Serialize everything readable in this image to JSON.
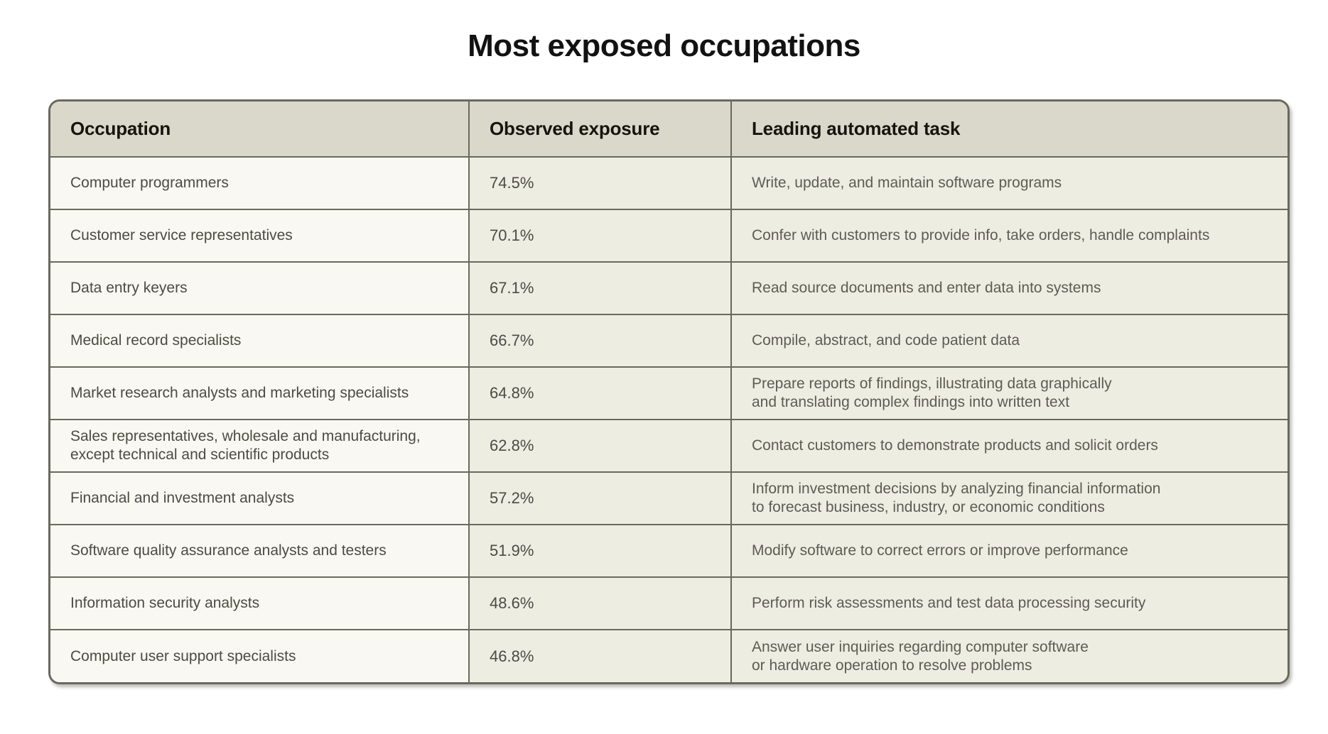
{
  "page": {
    "title": "Most exposed occupations",
    "background_color": "#ffffff"
  },
  "table": {
    "columns": [
      "Occupation",
      "Observed exposure",
      "Leading automated task"
    ],
    "rows": [
      {
        "occupation": "Computer programmers",
        "exposure": "74.5%",
        "task": "Write, update, and maintain software programs"
      },
      {
        "occupation": "Customer service representatives",
        "exposure": "70.1%",
        "task": "Confer with customers to provide info, take orders, handle complaints"
      },
      {
        "occupation": "Data entry keyers",
        "exposure": "67.1%",
        "task": "Read source documents and enter data into systems"
      },
      {
        "occupation": "Medical record specialists",
        "exposure": "66.7%",
        "task": "Compile, abstract, and code patient data"
      },
      {
        "occupation": "Market research analysts and marketing specialists",
        "exposure": "64.8%",
        "task": "Prepare reports of findings, illustrating data graphically\nand translating complex findings into written text"
      },
      {
        "occupation": "Sales representatives, wholesale and manufacturing,\nexcept technical and scientific products",
        "exposure": "62.8%",
        "task": "Contact customers to demonstrate products and solicit orders"
      },
      {
        "occupation": "Financial and investment analysts",
        "exposure": "57.2%",
        "task": "Inform investment decisions by analyzing financial information\nto forecast business, industry, or economic conditions"
      },
      {
        "occupation": "Software quality assurance analysts and testers",
        "exposure": "51.9%",
        "task": "Modify software to correct errors or improve performance"
      },
      {
        "occupation": "Information security analysts",
        "exposure": "48.6%",
        "task": "Perform risk assessments and test data processing security"
      },
      {
        "occupation": "Computer user support specialists",
        "exposure": "46.8%",
        "task": "Answer user inquiries regarding computer software\nor hardware operation to resolve problems"
      }
    ],
    "colors": {
      "header_bg": "#d9d8ca",
      "occupation_col_bg": "#f9f8f2",
      "data_col_bg": "#eeede2",
      "border": "#6a695f",
      "title_text": "#121212",
      "header_text": "#15140f",
      "cell_text_dark": "#4c4b44",
      "cell_text_muted": "#5d5c53"
    }
  },
  "chart_data": {
    "type": "table",
    "title": "Most exposed occupations",
    "columns": [
      "Occupation",
      "Observed exposure",
      "Leading automated task"
    ],
    "rows": [
      [
        "Computer programmers",
        74.5,
        "Write, update, and maintain software programs"
      ],
      [
        "Customer service representatives",
        70.1,
        "Confer with customers to provide info, take orders, handle complaints"
      ],
      [
        "Data entry keyers",
        67.1,
        "Read source documents and enter data into systems"
      ],
      [
        "Medical record specialists",
        66.7,
        "Compile, abstract, and code patient data"
      ],
      [
        "Market research analysts and marketing specialists",
        64.8,
        "Prepare reports of findings, illustrating data graphically and translating complex findings into written text"
      ],
      [
        "Sales representatives, wholesale and manufacturing, except technical and scientific products",
        62.8,
        "Contact customers to demonstrate products and solicit orders"
      ],
      [
        "Financial and investment analysts",
        57.2,
        "Inform investment decisions by analyzing financial information to forecast business, industry, or economic conditions"
      ],
      [
        "Software quality assurance analysts and testers",
        51.9,
        "Modify software to correct errors or improve performance"
      ],
      [
        "Information security analysts",
        48.6,
        "Perform risk assessments and test data processing security"
      ],
      [
        "Computer user support specialists",
        46.8,
        "Answer user inquiries regarding computer software or hardware operation to resolve problems"
      ]
    ],
    "exposure_unit": "%"
  }
}
